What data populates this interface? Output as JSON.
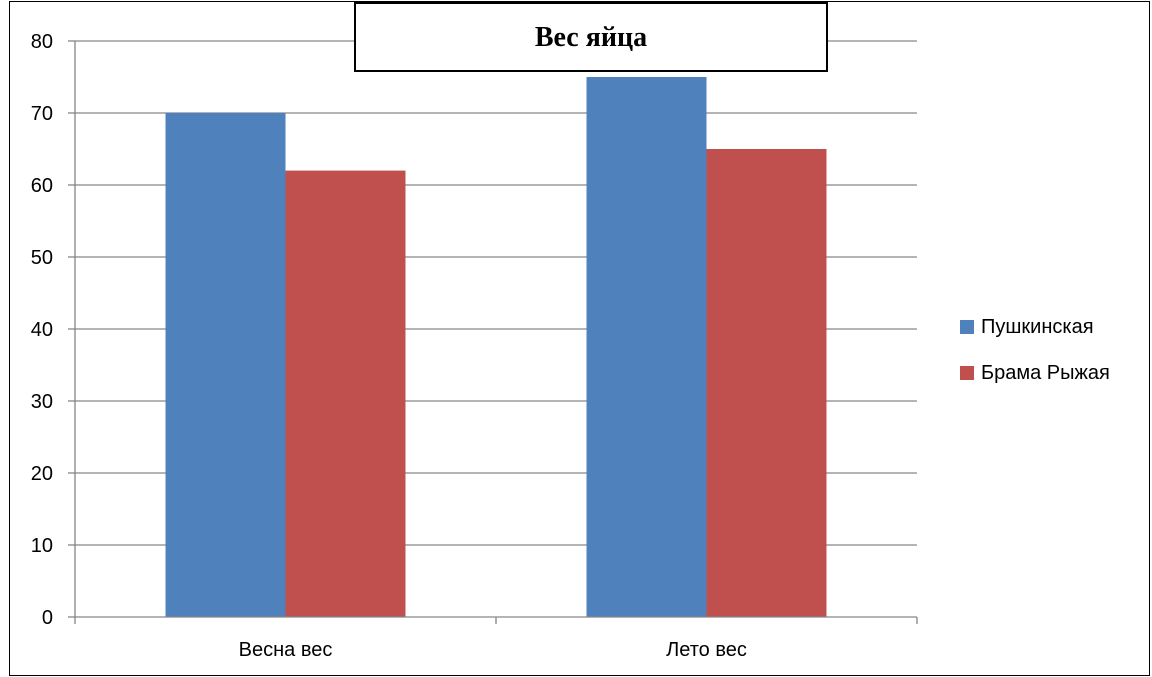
{
  "chart_data": {
    "type": "bar",
    "title": "Вес яйца",
    "categories": [
      "Весна вес",
      "Лето вес"
    ],
    "series": [
      {
        "name": "Пушкинская",
        "values": [
          70,
          75
        ],
        "color": "#4F81BD"
      },
      {
        "name": "Брама Рыжая",
        "values": [
          62,
          65
        ],
        "color": "#C0504D"
      }
    ],
    "ylim": [
      0,
      80
    ],
    "yticks": [
      0,
      10,
      20,
      30,
      40,
      50,
      60,
      70,
      80
    ],
    "xlabel": "",
    "ylabel": "",
    "grid": true,
    "legend_position": "right"
  }
}
